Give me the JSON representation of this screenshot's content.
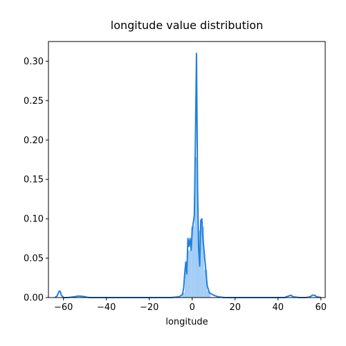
{
  "chart_data": {
    "type": "area",
    "title": "longitude value distribution",
    "xlabel": "longitude",
    "ylabel": "",
    "xlim": [
      -67,
      62
    ],
    "ylim": [
      0,
      0.325
    ],
    "xticks": [
      -60,
      -40,
      -20,
      0,
      20,
      40,
      60
    ],
    "yticks": [
      0.0,
      0.05,
      0.1,
      0.15,
      0.2,
      0.25,
      0.3
    ],
    "xtick_labels": [
      "−60",
      "−40",
      "−20",
      "0",
      "20",
      "40",
      "60"
    ],
    "ytick_labels": [
      "0.00",
      "0.05",
      "0.10",
      "0.15",
      "0.20",
      "0.25",
      "0.30"
    ],
    "grid": false,
    "colors": {
      "line": "#1f7fe0",
      "bars": "#a3cdf5"
    },
    "histogram": {
      "bins": [
        {
          "x0": -5,
          "x1": -3.5,
          "y": 0.006
        },
        {
          "x0": -3.5,
          "x1": -2,
          "y": 0.035
        },
        {
          "x0": -2,
          "x1": -0.5,
          "y": 0.06
        },
        {
          "x0": -0.5,
          "x1": 1,
          "y": 0.09
        },
        {
          "x0": 1,
          "x1": 2.5,
          "y": 0.178
        },
        {
          "x0": 2.5,
          "x1": 4,
          "y": 0.085
        },
        {
          "x0": 4,
          "x1": 5.5,
          "y": 0.09
        },
        {
          "x0": 5.5,
          "x1": 7,
          "y": 0.035
        },
        {
          "x0": 7,
          "x1": 8.5,
          "y": 0.008
        }
      ]
    },
    "kde": {
      "x": [
        -64,
        -63,
        -62,
        -61.5,
        -61,
        -60,
        -58,
        -55,
        -53,
        -51,
        -48,
        -40,
        -30,
        -20,
        -10,
        -6,
        -4.5,
        -4,
        -3.5,
        -3,
        -2.5,
        -2,
        -1.5,
        -1,
        -0.5,
        0,
        0.5,
        1,
        1.5,
        2,
        2.5,
        3,
        3.5,
        4,
        4.5,
        5,
        5.5,
        6,
        7,
        8,
        10,
        12,
        15,
        20,
        25,
        30,
        35,
        40,
        43,
        45,
        46,
        47,
        50,
        53,
        55,
        56,
        57,
        58,
        60
      ],
      "y": [
        0,
        0.002,
        0.008,
        0.008,
        0.003,
        0,
        0,
        0.001,
        0.002,
        0.0015,
        0,
        0,
        0,
        0,
        0,
        0.001,
        0.004,
        0.012,
        0.03,
        0.045,
        0.03,
        0.075,
        0.065,
        0.075,
        0.06,
        0.085,
        0.095,
        0.105,
        0.2,
        0.31,
        0.14,
        0.062,
        0.04,
        0.098,
        0.1,
        0.075,
        0.06,
        0.045,
        0.015,
        0.006,
        0.003,
        0.001,
        0,
        0,
        0,
        0,
        0,
        0,
        0,
        0.002,
        0.003,
        0.001,
        0,
        0,
        0.001,
        0.003,
        0.003,
        0.001,
        0
      ]
    }
  }
}
